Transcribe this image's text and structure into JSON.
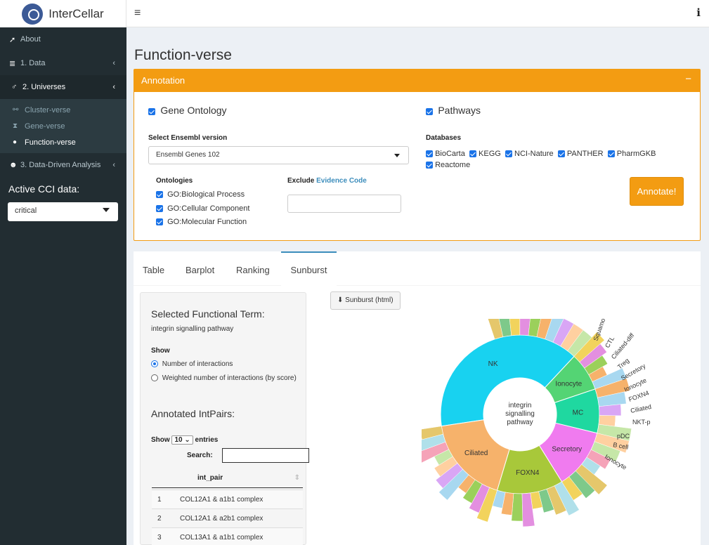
{
  "app": {
    "title": "InterCellar"
  },
  "header": {
    "menu_icon": "hamburger-icon",
    "info_icon": "i"
  },
  "sidebar": {
    "items": [
      {
        "label": "About",
        "icon": "rocket-icon"
      },
      {
        "label": "1. Data",
        "icon": "database-icon"
      },
      {
        "label": "2. Universes",
        "icon": "atom-icon"
      },
      {
        "label": "3. Data-Driven Analysis",
        "icon": "users-icon"
      }
    ],
    "subitems": [
      {
        "label": "Cluster-verse",
        "icon": "network-icon"
      },
      {
        "label": "Gene-verse",
        "icon": "hourglass-icon"
      },
      {
        "label": "Function-verse",
        "icon": "comments-icon"
      }
    ],
    "cci_label": "Active CCI data:",
    "cci_value": "critical"
  },
  "main": {
    "title": "Function-verse",
    "annotation": {
      "header": "Annotation",
      "gene_ontology": "Gene Ontology",
      "pathways": "Pathways",
      "ensembl_label": "Select Ensembl version",
      "ensembl_value": "Ensembl Genes 102",
      "ontologies_label": "Ontologies",
      "ontologies": [
        "GO:Biological Process",
        "GO:Cellular Component",
        "GO:Molecular Function"
      ],
      "exclude_label": "Exclude",
      "evidence_link": "Evidence Code",
      "databases_label": "Databases",
      "databases": [
        "BioCarta",
        "KEGG",
        "NCI-Nature",
        "PANTHER",
        "PharmGKB",
        "Reactome"
      ],
      "annotate_button": "Annotate!"
    },
    "tabs": [
      "Table",
      "Barplot",
      "Ranking",
      "Sunburst"
    ],
    "active_tab": "Sunburst",
    "panel": {
      "selected_term_label": "Selected Functional Term:",
      "selected_term": "integrin signalling pathway",
      "show_label": "Show",
      "show_options": [
        "Number of interactions",
        "Weighted number of interactions (by score)"
      ],
      "show_selected": "Number of interactions",
      "intpairs_label": "Annotated IntPairs:",
      "length_prefix": "Show",
      "length_value": "10",
      "length_suffix": "entries",
      "search_label": "Search:",
      "column_header": "int_pair",
      "rows": [
        {
          "n": "1",
          "pair": "COL12A1 & a1b1 complex"
        },
        {
          "n": "2",
          "pair": "COL12A1 & a2b1 complex"
        },
        {
          "n": "3",
          "pair": "COL13A1 & a1b1 complex"
        }
      ]
    },
    "download_button": "Sunburst (html)"
  },
  "chart_data": {
    "type": "sunburst",
    "center_label": [
      "integrin",
      "signalling",
      "pathway"
    ],
    "inner_ring": [
      {
        "label": "NK",
        "value": 35,
        "color": "#18d2f0"
      },
      {
        "label": "Ionocyte",
        "value": 7,
        "color": "#54d474"
      },
      {
        "label": "MC",
        "value": 8,
        "color": "#1fd8a0"
      },
      {
        "label": "Secretory",
        "value": 11,
        "color": "#f07bef"
      },
      {
        "label": "FOXN4",
        "value": 12,
        "color": "#a8c83a"
      },
      {
        "label": "Ciliated",
        "value": 16,
        "color": "#f6b26b"
      }
    ],
    "outer_ring_labels": [
      "Squamous",
      "CTL",
      "Ciliated-diff",
      "Treg",
      "Secretory",
      "Ionocyte",
      "FOXN4",
      "Ciliated",
      "NKT-p",
      "pDC",
      "B cell",
      "Ciliated",
      "Secretory",
      "NKT-p",
      "Ciliated-diff",
      "Squamous",
      "Treg",
      "CTL"
    ],
    "colors": {
      "accent": "#f39c12",
      "sidebar": "#222d32",
      "tab_active": "#3c8dbc"
    }
  }
}
